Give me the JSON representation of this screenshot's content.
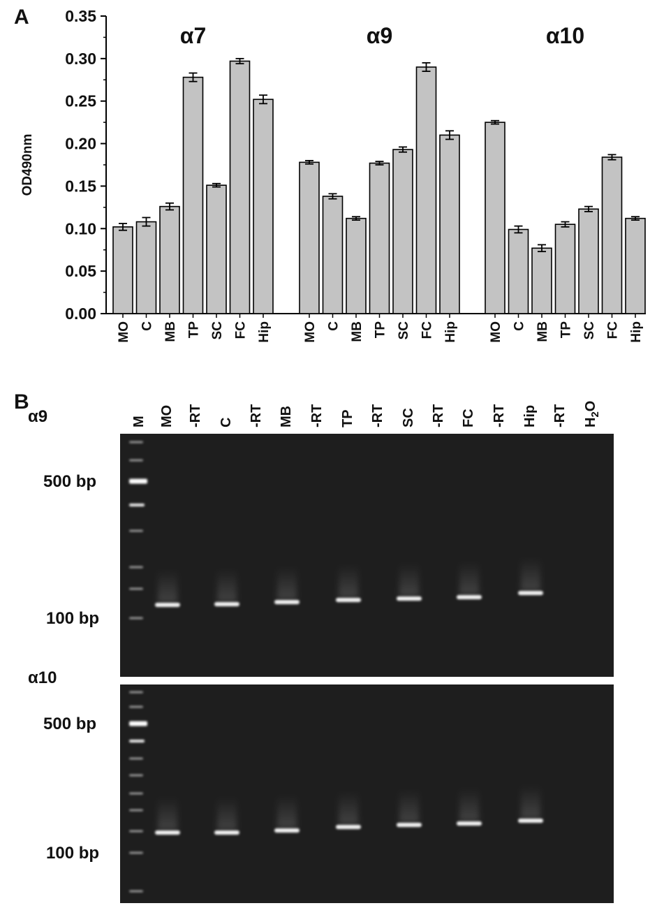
{
  "panel_a_label": "A",
  "panel_b_label": "B",
  "chart_data": {
    "type": "bar",
    "ylabel": "OD490nm",
    "ylim": [
      0,
      0.35
    ],
    "yticks": [
      "0.00",
      "0.05",
      "0.10",
      "0.15",
      "0.20",
      "0.25",
      "0.30",
      "0.35"
    ],
    "grid": false,
    "categories": [
      "MO",
      "C",
      "MB",
      "TP",
      "SC",
      "FC",
      "Hip"
    ],
    "groups": [
      {
        "title": "α7",
        "values": [
          0.102,
          0.108,
          0.126,
          0.278,
          0.151,
          0.297,
          0.252
        ],
        "errors": [
          0.004,
          0.005,
          0.004,
          0.005,
          0.002,
          0.003,
          0.005
        ]
      },
      {
        "title": "α9",
        "values": [
          0.178,
          0.138,
          0.112,
          0.177,
          0.193,
          0.29,
          0.21
        ],
        "errors": [
          0.002,
          0.003,
          0.002,
          0.002,
          0.003,
          0.005,
          0.005
        ]
      },
      {
        "title": "α10",
        "values": [
          0.225,
          0.099,
          0.077,
          0.105,
          0.123,
          0.184,
          0.112
        ],
        "errors": [
          0.002,
          0.004,
          0.004,
          0.003,
          0.003,
          0.003,
          0.002
        ]
      }
    ],
    "bar_color": "#c3c3c3"
  },
  "gel": {
    "lane_labels": [
      "M",
      "MO",
      "-RT",
      "C",
      "-RT",
      "MB",
      "-RT",
      "TP",
      "-RT",
      "SC",
      "-RT",
      "FC",
      "-RT",
      "Hip",
      "-RT",
      "H2O"
    ],
    "gels": [
      {
        "title": "α9",
        "marker_500": "500 bp",
        "marker_100": "100 bp"
      },
      {
        "title": "α10",
        "marker_500": "500 bp",
        "marker_100": "100 bp"
      }
    ],
    "background_color": "#1e1e1e"
  }
}
